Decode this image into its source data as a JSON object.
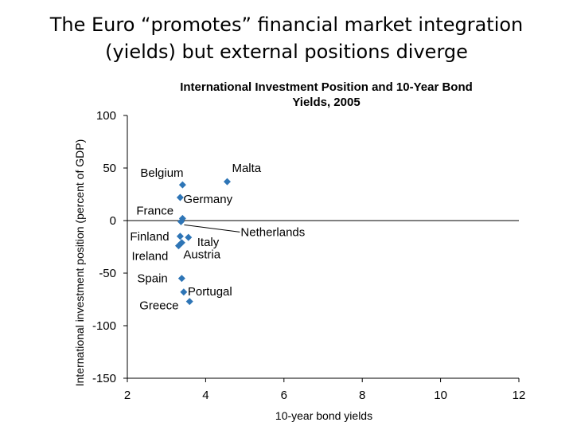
{
  "slide": {
    "title_line1": "The Euro “promotes” financial market integration",
    "title_line2": "(yields) but external positions diverge"
  },
  "chart_data": {
    "type": "scatter",
    "title_line1": "International Investment Position and 10-Year Bond",
    "title_line2": "Yields, 2005",
    "xlabel": "10-year bond yields",
    "ylabel": "International investment position (percent of GDP)",
    "xlim": [
      2,
      12
    ],
    "ylim": [
      -150,
      100
    ],
    "xticks": [
      2,
      4,
      6,
      8,
      10,
      12
    ],
    "yticks": [
      100,
      50,
      0,
      -50,
      -100,
      -150
    ],
    "zero_line": true,
    "grid": false,
    "marker_color": "#2E75B6",
    "points": [
      {
        "label": "Malta",
        "x": 4.55,
        "y": 37
      },
      {
        "label": "Belgium",
        "x": 3.41,
        "y": 34
      },
      {
        "label": "Germany",
        "x": 3.35,
        "y": 22
      },
      {
        "label": "France",
        "x": 3.41,
        "y": 2
      },
      {
        "label": "Netherlands",
        "x": 3.37,
        "y": -1
      },
      {
        "label": "Finland",
        "x": 3.35,
        "y": -15
      },
      {
        "label": "Italy",
        "x": 3.56,
        "y": -16
      },
      {
        "label": "Austria",
        "x": 3.39,
        "y": -21
      },
      {
        "label": "Ireland",
        "x": 3.31,
        "y": -24
      },
      {
        "label": "Spain",
        "x": 3.39,
        "y": -55
      },
      {
        "label": "Portugal",
        "x": 3.44,
        "y": -68
      },
      {
        "label": "Greece",
        "x": 3.59,
        "y": -77
      }
    ]
  }
}
